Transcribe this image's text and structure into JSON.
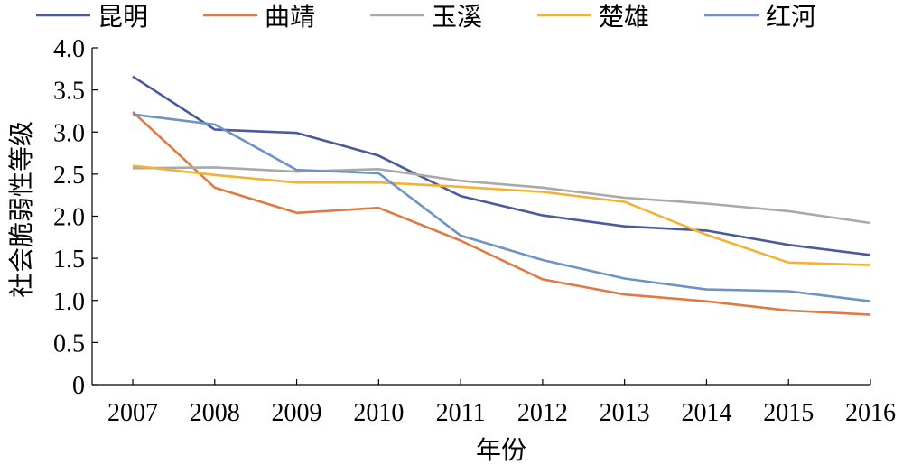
{
  "chart_data": {
    "type": "line",
    "title": "",
    "xlabel": "年份",
    "ylabel": "社会脆弱性等级",
    "x": [
      "2007",
      "2008",
      "2009",
      "2010",
      "2011",
      "2012",
      "2013",
      "2014",
      "2015",
      "2016"
    ],
    "ylim": [
      0,
      4.0
    ],
    "yticks": [
      "0",
      "0.5",
      "1.0",
      "1.5",
      "2.0",
      "2.5",
      "3.0",
      "3.5",
      "4.0"
    ],
    "grid": false,
    "legend_position": "top",
    "series": [
      {
        "name": "昆明",
        "color": "#4a5a9c",
        "values": [
          3.66,
          3.03,
          2.99,
          2.72,
          2.24,
          2.01,
          1.88,
          1.83,
          1.66,
          1.54
        ]
      },
      {
        "name": "曲靖",
        "color": "#e07a42",
        "values": [
          3.24,
          2.34,
          2.04,
          2.1,
          1.71,
          1.25,
          1.07,
          0.99,
          0.88,
          0.83
        ]
      },
      {
        "name": "玉溪",
        "color": "#a9a9a9",
        "values": [
          2.57,
          2.58,
          2.53,
          2.56,
          2.42,
          2.34,
          2.22,
          2.15,
          2.06,
          1.92
        ]
      },
      {
        "name": "楚雄",
        "color": "#f2b233",
        "values": [
          2.6,
          2.49,
          2.4,
          2.4,
          2.35,
          2.29,
          2.17,
          1.78,
          1.45,
          1.42
        ]
      },
      {
        "name": "红河",
        "color": "#6f93c6",
        "values": [
          3.21,
          3.09,
          2.55,
          2.51,
          1.77,
          1.48,
          1.26,
          1.13,
          1.11,
          0.99
        ]
      }
    ]
  }
}
